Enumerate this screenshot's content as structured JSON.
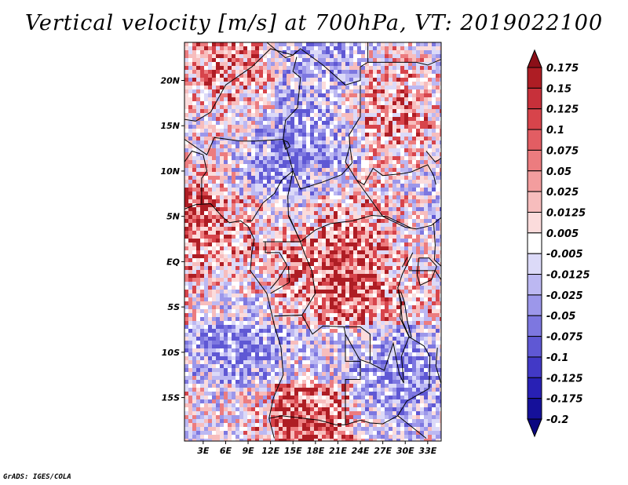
{
  "chart_data": {
    "type": "heatmap",
    "title": "Vertical velocity [m/s] at 700hPa, VT: 2019022100",
    "variable": "vertical velocity",
    "units": "m/s",
    "level": "700hPa",
    "valid_time": "2019022100",
    "x_ticks": [
      "3E",
      "6E",
      "9E",
      "12E",
      "15E",
      "18E",
      "21E",
      "24E",
      "27E",
      "30E",
      "33E"
    ],
    "y_ticks": [
      "20N",
      "15N",
      "10N",
      "5N",
      "EQ",
      "5S",
      "10S",
      "15S"
    ],
    "lon_range": [
      0.5,
      34.8
    ],
    "lat_range": [
      -19.8,
      24.2
    ],
    "x_tick_values": [
      3,
      6,
      9,
      12,
      15,
      18,
      21,
      24,
      27,
      30,
      33
    ],
    "y_tick_values": [
      20,
      15,
      10,
      5,
      0,
      -5,
      -10,
      -15
    ],
    "colorbar_levels": [
      "0.175",
      "0.15",
      "0.125",
      "0.1",
      "0.075",
      "0.05",
      "0.025",
      "0.0125",
      "0.005",
      "-0.005",
      "-0.0125",
      "-0.025",
      "-0.05",
      "-0.075",
      "-0.1",
      "-0.125",
      "-0.175",
      "-0.2"
    ],
    "colorbar_colors": [
      "#8b0f18",
      "#ae1d24",
      "#c7303a",
      "#d7444b",
      "#e25d63",
      "#ec7c7f",
      "#f39d9e",
      "#f7bdbd",
      "#fbdcdc",
      "#ffffff",
      "#dcdaf8",
      "#bcb8f2",
      "#9c97ea",
      "#7d77e0",
      "#5f58d4",
      "#4239c6",
      "#2820b4",
      "#15109a",
      "#0a0680"
    ]
  },
  "credit": "GrADS: IGES/COLA"
}
